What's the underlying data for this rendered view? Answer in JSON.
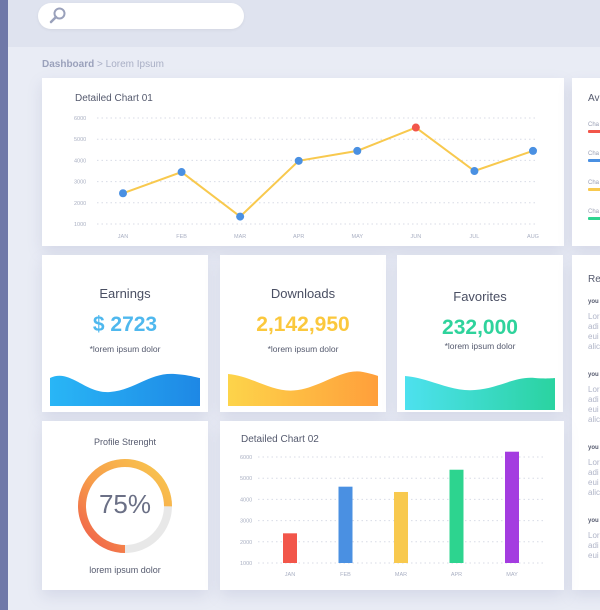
{
  "breadcrumb": {
    "root": "Dashboard",
    "separator": ">",
    "current": "Lorem Ipsum"
  },
  "search": {
    "placeholder": ""
  },
  "chart1": {
    "title": "Detailed Chart 01",
    "chart_data": {
      "type": "line",
      "categories": [
        "JAN",
        "FEB",
        "MAR",
        "APR",
        "MAY",
        "JUN",
        "JUL",
        "AUG"
      ],
      "values": [
        2450,
        3450,
        1350,
        3980,
        4450,
        5550,
        3500,
        4450
      ],
      "highlight_index": 5,
      "ylim": [
        1000,
        6000
      ],
      "yticks": [
        1000,
        2000,
        3000,
        4000,
        5000,
        6000
      ],
      "line_color": "#f8c94e",
      "point_color": "#4a90e2",
      "highlight_color": "#f2564a",
      "grid": true
    }
  },
  "legend_card": {
    "title": "Av",
    "items": [
      {
        "label": "Cha",
        "color": "#f2564a"
      },
      {
        "label": "Cha",
        "color": "#4a90e2"
      },
      {
        "label": "Cha",
        "color": "#f8c94e"
      },
      {
        "label": "Cha",
        "color": "#2dd48f"
      }
    ]
  },
  "stats": [
    {
      "title": "Earnings",
      "value": "$ 2723",
      "sub": "*lorem ipsum dolor",
      "color": "#4fb8ee",
      "wave_from": "#29b6f6",
      "wave_to": "#1e88e5"
    },
    {
      "title": "Downloads",
      "value": "2,142,950",
      "sub": "*lorem ipsum dolor",
      "color": "#fbc83d",
      "wave_from": "#fdd44a",
      "wave_to": "#ff9f3b"
    },
    {
      "title": "Favorites",
      "value": "232,000",
      "sub": "*lorem ipsum dolor",
      "color": "#2fd39c",
      "wave_from": "#4de1ef",
      "wave_to": "#2ad3a0"
    }
  ],
  "profile": {
    "title": "Profile Strenght",
    "percent_text": "75%",
    "percent": 75,
    "footer": "lorem ipsum dolor"
  },
  "chart2": {
    "title": "Detailed Chart 02",
    "chart_data": {
      "type": "bar",
      "categories": [
        "JAN",
        "FEB",
        "MAR",
        "APR",
        "MAY"
      ],
      "values": [
        2400,
        4600,
        4350,
        5400,
        6250
      ],
      "colors": [
        "#f2564a",
        "#4a90e2",
        "#f8c94e",
        "#2dd48f",
        "#a43ce0"
      ],
      "ylim": [
        1000,
        6000
      ],
      "yticks": [
        1000,
        2000,
        3000,
        4000,
        5000,
        6000
      ],
      "grid": true
    }
  },
  "reviews": {
    "title": "Re",
    "items": [
      {
        "name": "you",
        "lines": [
          "Lor",
          "adi",
          "eui",
          "alic"
        ]
      },
      {
        "name": "you",
        "lines": [
          "Lor",
          "adi",
          "eui",
          "alic"
        ]
      },
      {
        "name": "you",
        "lines": [
          "Lor",
          "adi",
          "eui",
          "alic"
        ]
      },
      {
        "name": "you",
        "lines": [
          "Lor",
          "adi",
          "eui"
        ]
      }
    ]
  }
}
